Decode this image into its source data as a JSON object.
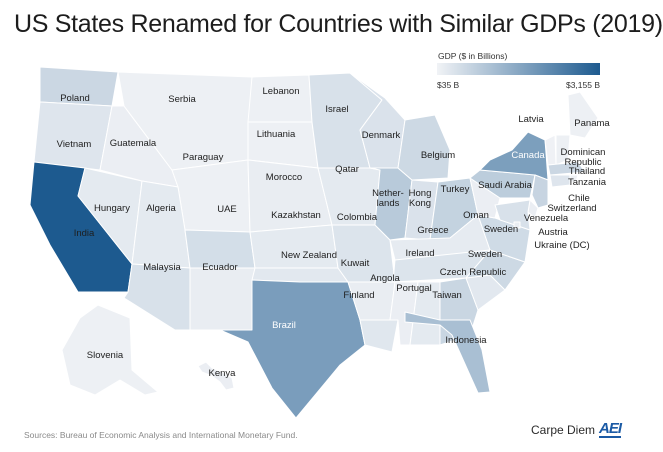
{
  "title": "US States Renamed for Countries with Similar GDPs (2019)",
  "legend": {
    "title": "GDP ($ in Billions)",
    "min_label": "$35 B",
    "max_label": "$3,155 B",
    "color_low": "#f1f3f6",
    "color_high": "#1d5a8f"
  },
  "source": "Sources: Bureau of Economic Analysis and International Monetary Fund.",
  "brand": {
    "name": "Carpe Diem",
    "logo": "AEI"
  },
  "regions": [
    {
      "state": "Washington",
      "label": "Poland",
      "level": 0.18
    },
    {
      "state": "Oregon",
      "label": "Vietnam",
      "level": 0.09
    },
    {
      "state": "California",
      "label": "India",
      "level": 1.0
    },
    {
      "state": "Nevada",
      "label": "Hungary",
      "level": 0.06
    },
    {
      "state": "Idaho",
      "label": "Guatemala",
      "level": 0.03
    },
    {
      "state": "Montana",
      "label": "Serbia",
      "level": 0.02
    },
    {
      "state": "Wyoming",
      "label": "Paraguay",
      "level": 0.02
    },
    {
      "state": "Utah",
      "label": "Algeria",
      "level": 0.06
    },
    {
      "state": "Arizona",
      "label": "Malaysia",
      "level": 0.12
    },
    {
      "state": "Colorado",
      "label": "UAE",
      "level": 0.14
    },
    {
      "state": "New Mexico",
      "label": "Ecuador",
      "level": 0.04
    },
    {
      "state": "North Dakota",
      "label": "Lebanon",
      "level": 0.02
    },
    {
      "state": "South Dakota",
      "label": "Lithuania",
      "level": 0.02
    },
    {
      "state": "Nebraska",
      "label": "Morocco",
      "level": 0.04
    },
    {
      "state": "Kansas",
      "label": "Kazakhstan",
      "level": 0.06
    },
    {
      "state": "Oklahoma",
      "label": "New Zealand",
      "level": 0.07
    },
    {
      "state": "Texas",
      "label": "Brazil",
      "level": 0.56
    },
    {
      "state": "Minnesota",
      "label": "Israel",
      "level": 0.12
    },
    {
      "state": "Iowa",
      "label": "Qatar",
      "level": 0.06
    },
    {
      "state": "Missouri",
      "label": "Colombia",
      "level": 0.1
    },
    {
      "state": "Arkansas",
      "label": "Kuwait",
      "level": 0.04
    },
    {
      "state": "Louisiana",
      "label": "Finland",
      "level": 0.08
    },
    {
      "state": "Wisconsin",
      "label": "Denmark",
      "level": 0.11
    },
    {
      "state": "Illinois",
      "label": "Netherlands",
      "level": 0.27
    },
    {
      "state": "Michigan",
      "label": "Belgium",
      "level": 0.17
    },
    {
      "state": "Indiana",
      "label": "Hong Kong",
      "level": 0.11
    },
    {
      "state": "Ohio",
      "label": "Turkey",
      "level": 0.21
    },
    {
      "state": "Kentucky",
      "label": "Oman",
      "level": 0.05
    },
    {
      "state": "Tennessee",
      "label": "Greece",
      "level": 0.1
    },
    {
      "state": "Mississippi",
      "label": "Angola",
      "level": 0.03
    },
    {
      "state": "Alabama",
      "label": "Portugal",
      "level": 0.06
    },
    {
      "state": "Georgia",
      "label": "Taiwan",
      "level": 0.19
    },
    {
      "state": "Florida",
      "label": "Indonesia",
      "level": 0.34
    },
    {
      "state": "South Carolina",
      "label": "Czech Republic",
      "level": 0.07
    },
    {
      "state": "North Carolina",
      "label": "Sweden",
      "level": 0.17
    },
    {
      "state": "Virginia",
      "label": "Sweden",
      "level": 0.16
    },
    {
      "state": "West Virginia",
      "label": "Ireland",
      "level": 0.03
    },
    {
      "state": "Pennsylvania",
      "label": "Saudi Arabia",
      "level": 0.25
    },
    {
      "state": "New York",
      "label": "Canada",
      "level": 0.55
    },
    {
      "state": "Maine",
      "label": "Latvia",
      "level": 0.02
    },
    {
      "state": "Vermont",
      "label": "Panama",
      "level": 0.01
    },
    {
      "state": "New Hampshire",
      "label": "Dominican Republic",
      "level": 0.02
    },
    {
      "state": "Massachusetts",
      "label": "Thailand",
      "level": 0.18
    },
    {
      "state": "Rhode Island",
      "label": "Tanzania",
      "level": 0.02
    },
    {
      "state": "Connecticut",
      "label": "Chile",
      "level": 0.09
    },
    {
      "state": "New Jersey",
      "label": "Switzerland",
      "level": 0.2
    },
    {
      "state": "Delaware",
      "label": "Venezuela",
      "level": 0.03
    },
    {
      "state": "Maryland",
      "label": "Austria",
      "level": 0.12
    },
    {
      "state": "District of Columbia",
      "label": "Ukraine (DC)",
      "level": 0.04
    },
    {
      "state": "Alaska",
      "label": "Slovenia",
      "level": 0.02
    },
    {
      "state": "Hawaii",
      "label": "Kenya",
      "level": 0.03
    }
  ]
}
